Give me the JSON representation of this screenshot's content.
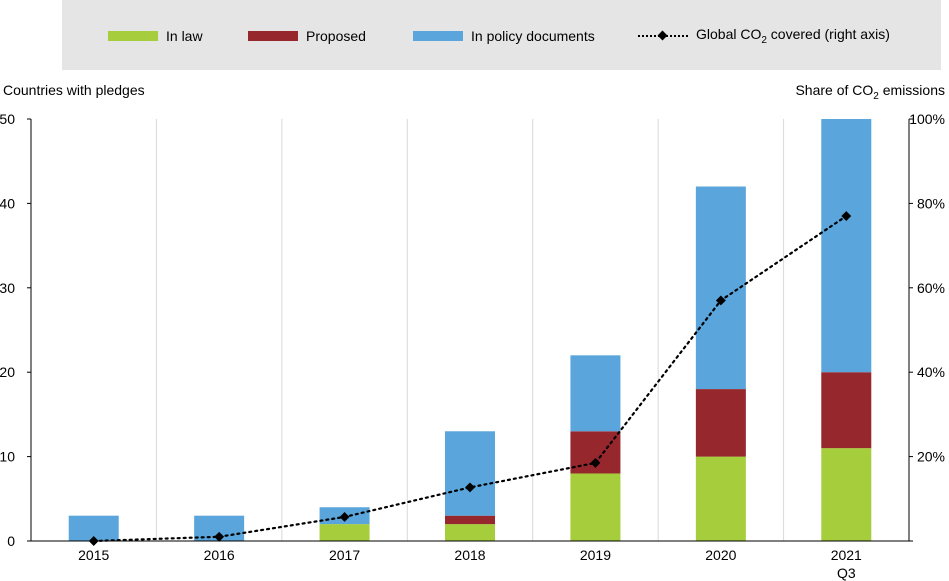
{
  "colors": {
    "in_law": "#a5cd3c",
    "proposed": "#96272d",
    "in_policy": "#5aa6dc",
    "line": "#000000",
    "grid": "#d9d9d9",
    "legend_bg": "#e5e5e5"
  },
  "legend": {
    "in_law": "In law",
    "proposed": "Proposed",
    "in_policy": "In policy documents",
    "global_prefix": "Global CO",
    "global_sub": "2",
    "global_suffix": " covered (right axis)"
  },
  "axes": {
    "left_title": "Countries with pledges",
    "right_title_prefix": "Share of CO",
    "right_title_sub": "2",
    "right_title_suffix": " emissions"
  },
  "chart_data": {
    "type": "bar",
    "stacked": true,
    "categories": [
      "2015",
      "2016",
      "2017",
      "2018",
      "2019",
      "2020",
      "2021"
    ],
    "category_sublabels": [
      "",
      "",
      "",
      "",
      "",
      "",
      "Q3"
    ],
    "series": [
      {
        "name": "In law",
        "values": [
          0,
          0,
          2,
          2,
          8,
          10,
          11
        ]
      },
      {
        "name": "Proposed",
        "values": [
          0,
          0,
          0,
          1,
          5,
          8,
          9
        ]
      },
      {
        "name": "In policy documents",
        "values": [
          3,
          3,
          2,
          10,
          9,
          24,
          30
        ]
      }
    ],
    "line_series": {
      "name": "Global CO2 covered (right axis)",
      "axis": "right",
      "values": [
        0,
        1,
        5.7,
        12.7,
        18.5,
        57,
        77
      ]
    },
    "ylim_left": [
      0,
      50
    ],
    "yticks_left": [
      "0",
      "10",
      "20",
      "30",
      "40",
      "50"
    ],
    "ylim_right": [
      0,
      100
    ],
    "yticks_right": [
      "",
      "20%",
      "40%",
      "60%",
      "80%",
      "100%"
    ],
    "grid": "vertical",
    "legend_position": "top"
  }
}
